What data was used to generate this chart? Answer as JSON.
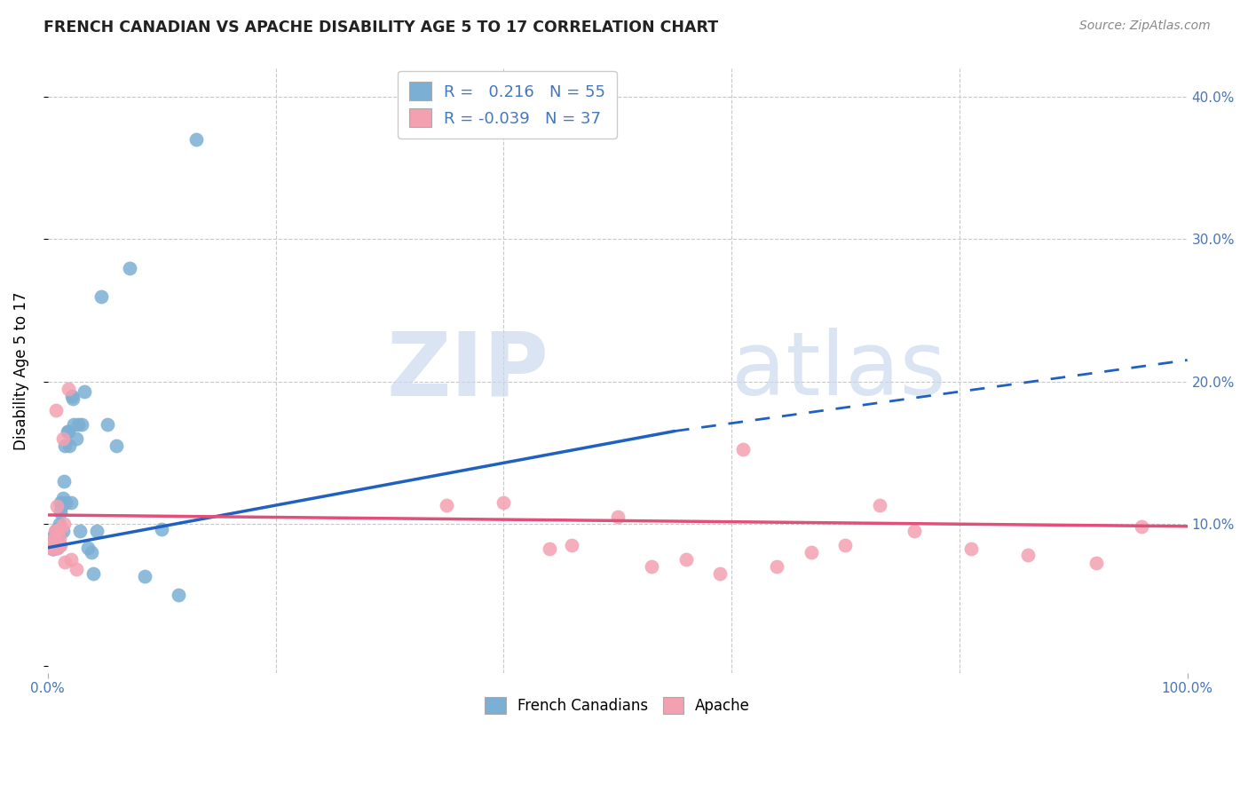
{
  "title": "FRENCH CANADIAN VS APACHE DISABILITY AGE 5 TO 17 CORRELATION CHART",
  "source": "Source: ZipAtlas.com",
  "ylabel": "Disability Age 5 to 17",
  "xlim": [
    0,
    1.0
  ],
  "ylim": [
    -0.005,
    0.42
  ],
  "xticks": [
    0.0,
    1.0
  ],
  "xticklabels": [
    "0.0%",
    "100.0%"
  ],
  "yticks": [
    0.0,
    0.1,
    0.2,
    0.3,
    0.4
  ],
  "ytick_labels_right": [
    "",
    "10.0%",
    "20.0%",
    "30.0%",
    "40.0%"
  ],
  "r_blue": 0.216,
  "n_blue": 55,
  "r_pink": -0.039,
  "n_pink": 37,
  "blue_color": "#7bafd4",
  "pink_color": "#f4a0b0",
  "trend_blue_color": "#2060c0",
  "trend_pink_color": "#e0507a",
  "grid_color": "#c8c8c8",
  "axis_color": "#4477bb",
  "french_canadian_x": [
    0.002,
    0.003,
    0.003,
    0.004,
    0.004,
    0.004,
    0.005,
    0.005,
    0.005,
    0.006,
    0.006,
    0.006,
    0.007,
    0.007,
    0.007,
    0.008,
    0.008,
    0.008,
    0.009,
    0.009,
    0.01,
    0.01,
    0.01,
    0.011,
    0.011,
    0.012,
    0.013,
    0.013,
    0.014,
    0.015,
    0.016,
    0.017,
    0.018,
    0.019,
    0.02,
    0.021,
    0.022,
    0.023,
    0.025,
    0.027,
    0.028,
    0.03,
    0.032,
    0.035,
    0.038,
    0.04,
    0.043,
    0.047,
    0.052,
    0.06,
    0.072,
    0.085,
    0.1,
    0.115,
    0.13
  ],
  "french_canadian_y": [
    0.085,
    0.083,
    0.088,
    0.082,
    0.087,
    0.09,
    0.082,
    0.086,
    0.091,
    0.083,
    0.088,
    0.093,
    0.084,
    0.089,
    0.095,
    0.083,
    0.09,
    0.096,
    0.086,
    0.092,
    0.085,
    0.093,
    0.1,
    0.108,
    0.115,
    0.112,
    0.118,
    0.095,
    0.13,
    0.155,
    0.115,
    0.165,
    0.165,
    0.155,
    0.115,
    0.19,
    0.188,
    0.17,
    0.16,
    0.17,
    0.095,
    0.17,
    0.193,
    0.083,
    0.08,
    0.065,
    0.095,
    0.26,
    0.17,
    0.155,
    0.28,
    0.063,
    0.096,
    0.05,
    0.37
  ],
  "apache_x": [
    0.002,
    0.003,
    0.004,
    0.005,
    0.006,
    0.006,
    0.007,
    0.008,
    0.008,
    0.009,
    0.01,
    0.011,
    0.012,
    0.013,
    0.014,
    0.015,
    0.018,
    0.02,
    0.025,
    0.35,
    0.4,
    0.44,
    0.46,
    0.5,
    0.53,
    0.56,
    0.59,
    0.61,
    0.64,
    0.67,
    0.7,
    0.73,
    0.76,
    0.81,
    0.86,
    0.92,
    0.96
  ],
  "apache_y": [
    0.083,
    0.088,
    0.085,
    0.082,
    0.09,
    0.095,
    0.18,
    0.112,
    0.095,
    0.083,
    0.09,
    0.085,
    0.097,
    0.16,
    0.1,
    0.073,
    0.195,
    0.075,
    0.068,
    0.113,
    0.115,
    0.082,
    0.085,
    0.105,
    0.07,
    0.075,
    0.065,
    0.152,
    0.07,
    0.08,
    0.085,
    0.113,
    0.095,
    0.082,
    0.078,
    0.072,
    0.098
  ]
}
